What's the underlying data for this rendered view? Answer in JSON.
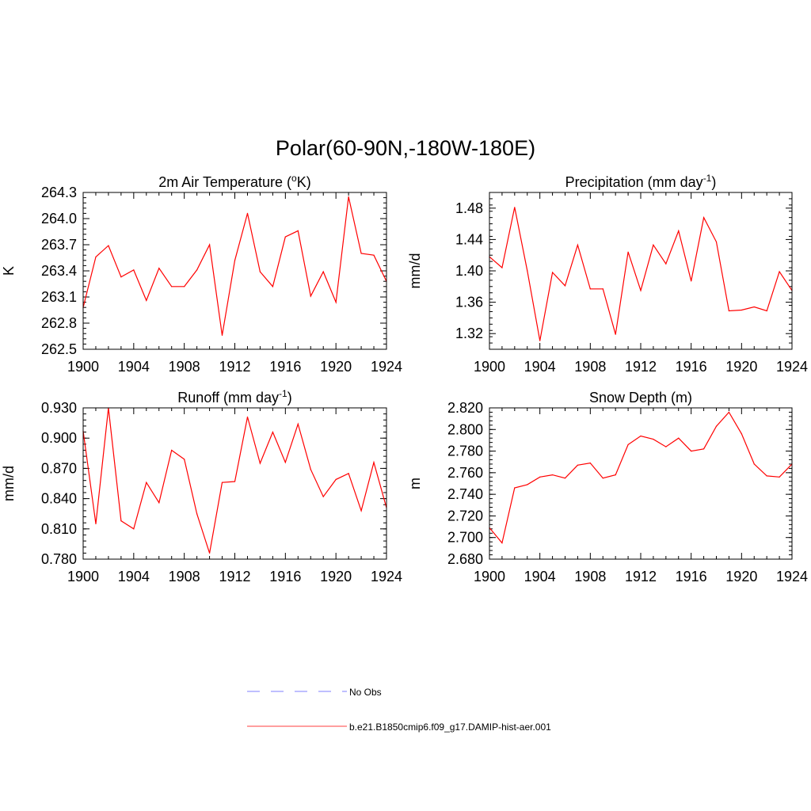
{
  "figure": {
    "title": "Polar(60-90N,-180W-180E)"
  },
  "legend": {
    "entries": [
      {
        "label": "No Obs",
        "color": "#9999ff",
        "dash": true
      },
      {
        "label": "b.e21.B1850cmip6.f09_g17.DAMIP-hist-aer.001",
        "color": "#ff6666",
        "dash": false
      }
    ]
  },
  "chart_data": [
    {
      "type": "line",
      "title_text": "2m Air Temperature (",
      "title_sup": "o",
      "title_tail": "K)",
      "ylabel": "K",
      "xlim": [
        1900,
        1924
      ],
      "ylim": [
        262.5,
        264.3
      ],
      "xticks": [
        "1900",
        "1904",
        "1908",
        "1912",
        "1916",
        "1920",
        "1924"
      ],
      "yticks": [
        "262.5",
        "262.8",
        "263.1",
        "263.4",
        "263.7",
        "264.0",
        "264.3"
      ],
      "series": [
        {
          "color": "#ff0000",
          "x": [
            1900,
            1901,
            1902,
            1903,
            1904,
            1905,
            1906,
            1907,
            1908,
            1909,
            1910,
            1911,
            1912,
            1913,
            1914,
            1915,
            1916,
            1917,
            1918,
            1919,
            1920,
            1921,
            1922,
            1923,
            1924
          ],
          "y": [
            262.98,
            263.56,
            263.69,
            263.33,
            263.41,
            263.06,
            263.43,
            263.22,
            263.22,
            263.41,
            263.7,
            262.66,
            263.52,
            264.06,
            263.39,
            263.22,
            263.79,
            263.86,
            263.11,
            263.39,
            263.04,
            264.25,
            263.6,
            263.58,
            263.28
          ]
        }
      ]
    },
    {
      "type": "line",
      "title_text": "Precipitation (mm day",
      "title_sup": "-1",
      "title_tail": ")",
      "ylabel": "mm/d",
      "xlim": [
        1900,
        1924
      ],
      "ylim": [
        1.3,
        1.5
      ],
      "xticks": [
        "1900",
        "1904",
        "1908",
        "1912",
        "1916",
        "1920",
        "1924"
      ],
      "yticks": [
        "1.32",
        "1.36",
        "1.40",
        "1.44",
        "1.48"
      ],
      "series": [
        {
          "color": "#ff0000",
          "x": [
            1900,
            1901,
            1902,
            1903,
            1904,
            1905,
            1906,
            1907,
            1908,
            1909,
            1910,
            1911,
            1912,
            1913,
            1914,
            1915,
            1916,
            1917,
            1918,
            1919,
            1920,
            1921,
            1922,
            1923,
            1924
          ],
          "y": [
            1.418,
            1.404,
            1.481,
            1.4,
            1.311,
            1.398,
            1.381,
            1.433,
            1.377,
            1.377,
            1.319,
            1.424,
            1.375,
            1.433,
            1.409,
            1.451,
            1.387,
            1.468,
            1.437,
            1.349,
            1.35,
            1.354,
            1.349,
            1.399,
            1.375
          ]
        }
      ]
    },
    {
      "type": "line",
      "title_text": "Runoff (mm day",
      "title_sup": "-1",
      "title_tail": ")",
      "ylabel": "mm/d",
      "xlim": [
        1900,
        1924
      ],
      "ylim": [
        0.78,
        0.93
      ],
      "xticks": [
        "1900",
        "1904",
        "1908",
        "1912",
        "1916",
        "1920",
        "1924"
      ],
      "yticks": [
        "0.780",
        "0.810",
        "0.840",
        "0.870",
        "0.900",
        "0.930"
      ],
      "series": [
        {
          "color": "#ff0000",
          "x": [
            1900,
            1901,
            1902,
            1903,
            1904,
            1905,
            1906,
            1907,
            1908,
            1909,
            1910,
            1911,
            1912,
            1913,
            1914,
            1915,
            1916,
            1917,
            1918,
            1919,
            1920,
            1921,
            1922,
            1923,
            1924
          ],
          "y": [
            0.907,
            0.815,
            0.93,
            0.818,
            0.81,
            0.856,
            0.836,
            0.888,
            0.879,
            0.825,
            0.786,
            0.856,
            0.857,
            0.921,
            0.875,
            0.906,
            0.876,
            0.914,
            0.869,
            0.842,
            0.859,
            0.865,
            0.828,
            0.876,
            0.831
          ]
        }
      ]
    },
    {
      "type": "line",
      "title_text": "Snow Depth (m)",
      "title_sup": "",
      "title_tail": "",
      "ylabel": "m",
      "xlim": [
        1900,
        1924
      ],
      "ylim": [
        2.68,
        2.82
      ],
      "xticks": [
        "1900",
        "1904",
        "1908",
        "1912",
        "1916",
        "1920",
        "1924"
      ],
      "yticks": [
        "2.680",
        "2.700",
        "2.720",
        "2.740",
        "2.760",
        "2.780",
        "2.800",
        "2.820"
      ],
      "series": [
        {
          "color": "#ff0000",
          "x": [
            1900,
            1901,
            1902,
            1903,
            1904,
            1905,
            1906,
            1907,
            1908,
            1909,
            1910,
            1911,
            1912,
            1913,
            1914,
            1915,
            1916,
            1917,
            1918,
            1919,
            1920,
            1921,
            1922,
            1923,
            1924
          ],
          "y": [
            2.709,
            2.695,
            2.746,
            2.749,
            2.756,
            2.758,
            2.755,
            2.767,
            2.769,
            2.755,
            2.758,
            2.786,
            2.794,
            2.791,
            2.784,
            2.792,
            2.78,
            2.782,
            2.803,
            2.816,
            2.796,
            2.768,
            2.757,
            2.756,
            2.768
          ]
        }
      ]
    }
  ]
}
